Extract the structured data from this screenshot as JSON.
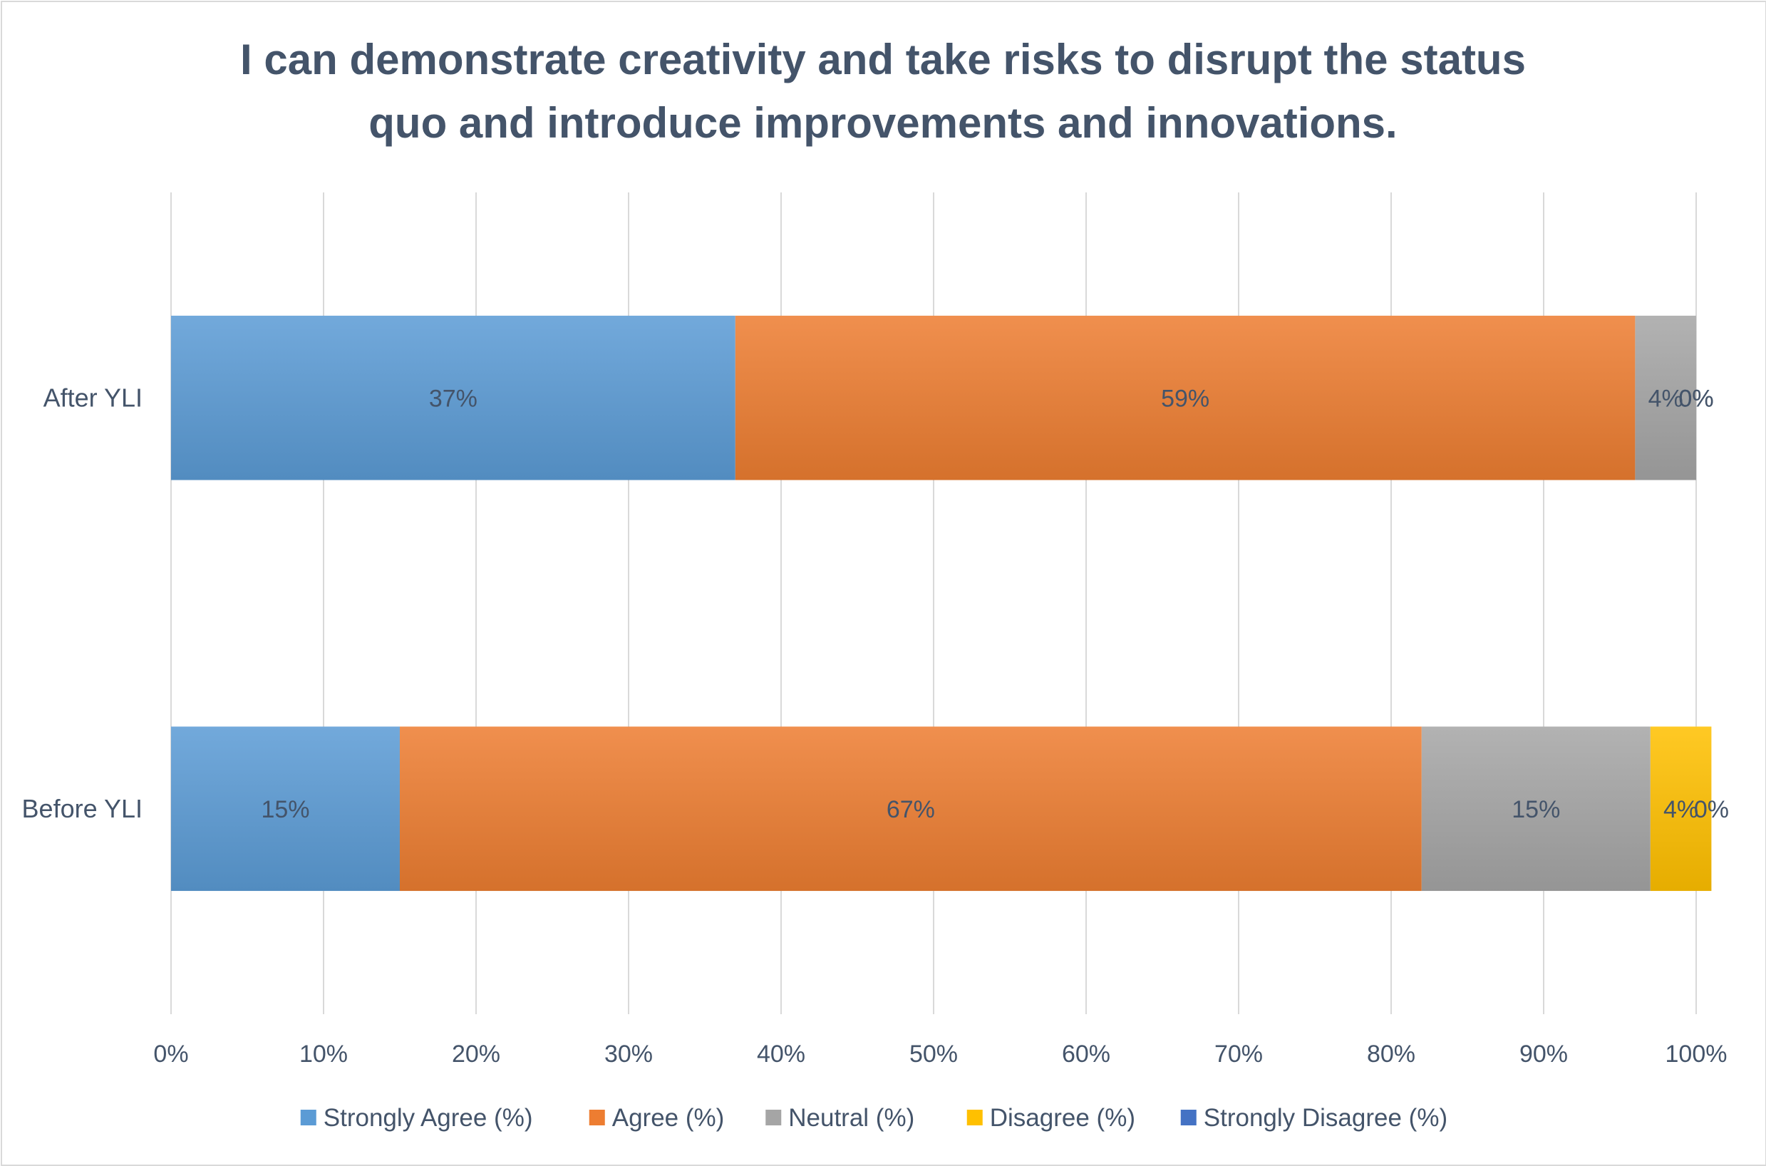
{
  "chart_data": {
    "type": "bar",
    "orientation": "horizontal",
    "stacked": "100%",
    "title_lines": [
      "I can demonstrate creativity and take risks to disrupt the status",
      "quo and introduce improvements and innovations."
    ],
    "categories": [
      "After YLI",
      "Before YLI"
    ],
    "series": [
      {
        "name": "Strongly Agree (%)",
        "color": "#5b9bd5",
        "values": [
          37,
          15
        ],
        "labels": [
          "37%",
          "15%"
        ]
      },
      {
        "name": "Agree (%)",
        "color": "#ed7d31",
        "values": [
          59,
          67
        ],
        "labels": [
          "59%",
          "67%"
        ]
      },
      {
        "name": "Neutral (%)",
        "color": "#a5a5a5",
        "values": [
          4,
          15
        ],
        "labels": [
          "4%",
          "15%"
        ]
      },
      {
        "name": "Disagree (%)",
        "color": "#ffc000",
        "values": [
          0,
          4
        ],
        "labels": [
          "0%",
          "4%"
        ]
      },
      {
        "name": "Strongly Disagree (%)",
        "color": "#4472c4",
        "values": [
          0,
          0
        ],
        "labels": [
          "0%",
          "0%"
        ]
      }
    ],
    "xlim": [
      0,
      100
    ],
    "x_ticks": [
      "0%",
      "10%",
      "20%",
      "30%",
      "40%",
      "50%",
      "60%",
      "70%",
      "80%",
      "90%",
      "100%"
    ],
    "grid": true,
    "legend": "bottom"
  }
}
